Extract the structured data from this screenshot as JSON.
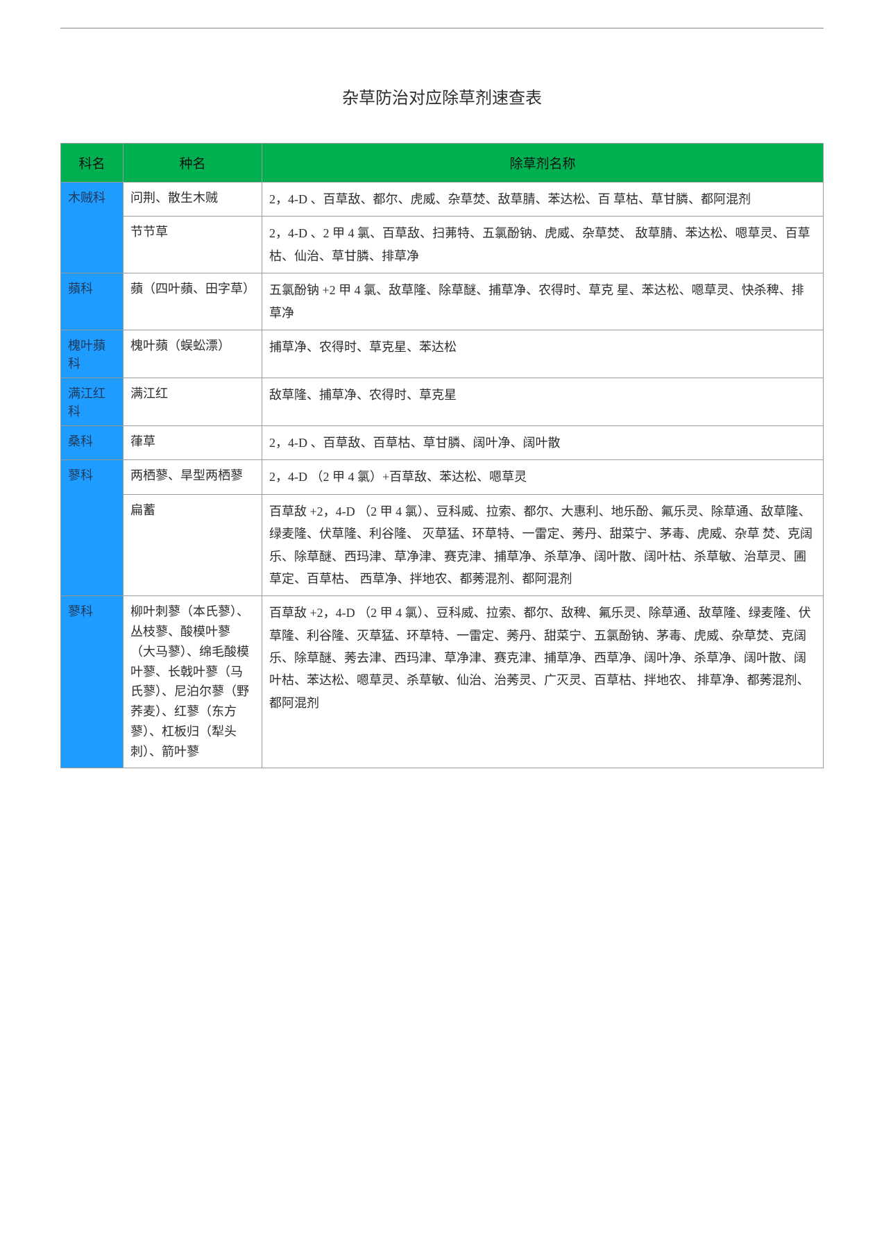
{
  "title": "杂草防治对应除草剂速查表",
  "header": {
    "col1": "科名",
    "col2": "种名",
    "col3": "除草剂名称"
  },
  "families": [
    {
      "name": "木贼科",
      "rows": [
        {
          "species": "问荆、散生木贼",
          "herbicide": "2，4-D 、百草敌、都尔、虎威、杂草焚、敌草腈、苯达松、百\n草枯、草甘膦、都阿混剂"
        },
        {
          "species": "节节草",
          "herbicide": "2，4-D 、2 甲 4 氯、百草敌、扫茀特、五氯酚钠、虎威、杂草焚、\n敌草腈、苯达松、嗯草灵、百草枯、仙治、草甘膦、排草净"
        }
      ]
    },
    {
      "name": "蘋科",
      "rows": [
        {
          "species": "蘋（四叶蘋、田字草）",
          "herbicide": "五氯酚钠 +2 甲 4 氯、敌草隆、除草醚、捕草净、农得时、草克\n星、苯达松、嗯草灵、快杀稗、排草净"
        }
      ]
    },
    {
      "name": "槐叶蘋科",
      "rows": [
        {
          "species": "槐叶蘋（蜈蚣漂）",
          "herbicide": "捕草净、农得时、草克星、苯达松"
        }
      ]
    },
    {
      "name": "满江红科",
      "rows": [
        {
          "species": "满江红",
          "herbicide": "敌草隆、捕草净、农得时、草克星"
        }
      ]
    },
    {
      "name": "桑科",
      "rows": [
        {
          "species": "葎草",
          "herbicide": "2，4-D 、百草敌、百草枯、草甘膦、阔叶净、阔叶散"
        }
      ]
    },
    {
      "name": "蓼科",
      "rows": [
        {
          "species": "两栖蓼、旱型两栖蓼",
          "herbicide": "2，4-D （2 甲 4 氯）+百草敌、苯达松、嗯草灵"
        },
        {
          "species": "扁蓄",
          "herbicide": "百草敌 +2，4-D （2 甲 4 氯）、豆科威、拉索、都尔、大惠利、地乐酚、氟乐灵、除草通、敌草隆、绿麦隆、伏草隆、利谷隆、\n灭草猛、环草特、一雷定、莠丹、甜菜宁、茅毒、虎威、杂草\n焚、克阔乐、除草醚、西玛津、草净津、赛克津、捕草净、杀草净、阔叶散、阔叶枯、杀草敏、治草灵、圃草定、百草枯、\n西草净、拌地农、都莠混剂、都阿混剂"
        }
      ]
    },
    {
      "name": "蓼科",
      "rows": [
        {
          "species": "柳叶刺蓼（本氏蓼）、丛枝蓼、酸模叶蓼（大马蓼）、绵毛酸模叶蓼、长戟叶蓼（马氏蓼）、尼泊尔蓼（野荞麦）、红蓼（东方蓼）、杠板归（犁头刺）、箭叶蓼",
          "herbicide": "百草敌 +2，4-D （2 甲 4 氯）、豆科威、拉索、都尔、敌稗、氟乐灵、除草通、敌草隆、绿麦隆、伏草隆、利谷隆、灭草猛、环草特、一雷定、莠丹、甜菜宁、五氯酚钠、茅毒、虎威、杂草焚、克阔乐、除草醚、莠去津、西玛津、草净津、赛克津、捕草净、西草净、阔叶净、杀草净、阔叶散、阔叶枯、苯达松、嗯草灵、杀草敏、仙治、治莠灵、广灭灵、百草枯、拌地农、\n排草净、都莠混剂、都阿混剂"
        }
      ]
    }
  ]
}
